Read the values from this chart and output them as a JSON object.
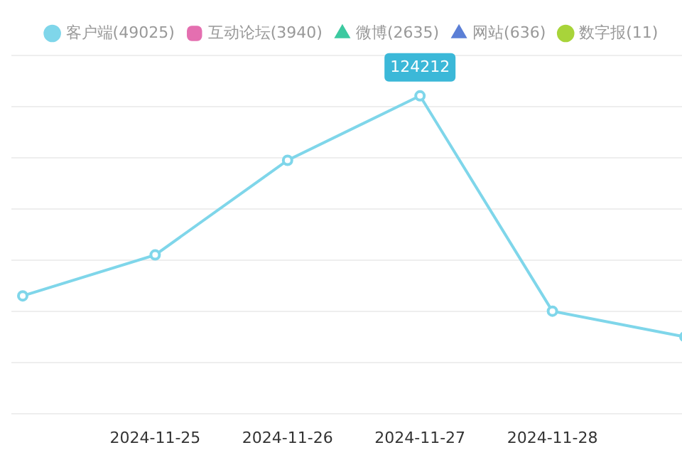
{
  "chart_data": {
    "type": "line",
    "categories": [
      null,
      "2024-11-25",
      "2024-11-26",
      "2024-11-27",
      "2024-11-28",
      null
    ],
    "series": [
      {
        "name": "客户端(49025)",
        "color": "#7fd6ea",
        "values": [
          46000,
          62000,
          99000,
          124212,
          40000,
          30000
        ],
        "value_labels": [
          null,
          null,
          null,
          "124212",
          null,
          null
        ]
      },
      {
        "name": "互动论坛(3940)",
        "color": "#e46fb0",
        "values": [
          null,
          null,
          null,
          null,
          null,
          null
        ]
      },
      {
        "name": "微博(2635)",
        "color": "#3cc9a0",
        "values": [
          null,
          null,
          null,
          null,
          null,
          null
        ]
      },
      {
        "name": "网站(636)",
        "color": "#5b7fd6",
        "values": [
          null,
          null,
          null,
          null,
          null,
          null
        ]
      },
      {
        "name": "数字报(11)",
        "color": "#a8d43a",
        "values": [
          null,
          null,
          null,
          null,
          null,
          null
        ]
      }
    ],
    "ylim": [
      0,
      140000
    ],
    "yticks": [
      0,
      20000,
      40000,
      60000,
      80000,
      100000,
      120000,
      140000
    ],
    "tick_labels": "x",
    "marker": "circle",
    "grid": "y",
    "legend": "top"
  }
}
